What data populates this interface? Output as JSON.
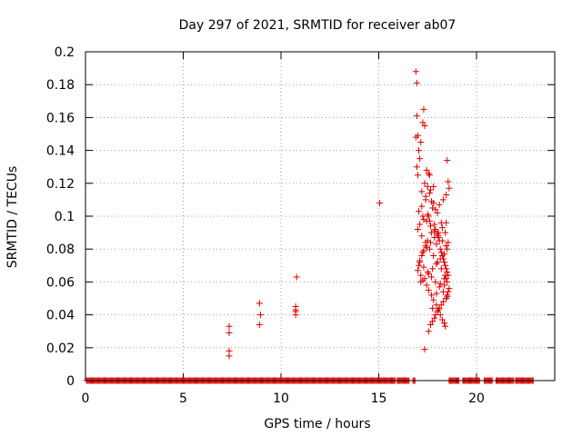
{
  "chart_data": {
    "type": "scatter",
    "title": "Day 297 of 2021, SRMTID for receiver ab07",
    "xlabel": "GPS time / hours",
    "ylabel": "SRMTID / TECUs",
    "xlim": [
      0,
      24
    ],
    "ylim": [
      0,
      0.2
    ],
    "xticks": [
      0,
      5,
      10,
      15,
      20
    ],
    "xtick_labels": [
      "0",
      "5",
      "10",
      "15",
      "20"
    ],
    "yticks": [
      0,
      0.02,
      0.04,
      0.06,
      0.08,
      0.1,
      0.12,
      0.14,
      0.16,
      0.18,
      0.2
    ],
    "ytick_labels": [
      "0",
      "0.02",
      "0.04",
      "0.06",
      "0.08",
      "0.1",
      "0.12",
      "0.14",
      "0.16",
      "0.18",
      "0.2"
    ],
    "grid": true,
    "marker": "+",
    "marker_color": "#dd0000",
    "zero_runs": [
      [
        0.05,
        15.85
      ],
      [
        15.95,
        16.55
      ],
      [
        16.75,
        16.85
      ],
      [
        18.6,
        19.1
      ],
      [
        19.3,
        20.15
      ],
      [
        20.4,
        20.8
      ],
      [
        21.0,
        21.9
      ],
      [
        22.0,
        22.9
      ]
    ],
    "zero_step": 0.05,
    "series": [
      {
        "name": "SRMTID",
        "x": [
          7.35,
          7.35,
          7.35,
          7.35,
          8.9,
          8.95,
          8.9,
          10.75,
          10.75,
          10.75,
          10.75,
          10.8,
          15.05,
          16.9,
          16.95,
          16.95,
          17.0,
          16.9,
          17.05,
          16.95,
          17.1,
          17.0,
          17.2,
          17.3,
          17.35,
          17.15,
          17.25,
          17.45,
          17.55,
          17.6,
          17.35,
          17.5,
          17.65,
          17.4,
          17.7,
          17.75,
          17.8,
          17.55,
          17.6,
          17.85,
          17.9,
          17.7,
          18.0,
          18.05,
          18.1,
          17.95,
          18.15,
          18.2,
          18.25,
          18.3,
          18.35,
          18.4,
          18.45,
          18.5,
          18.55,
          18.45,
          18.5,
          18.35,
          18.6,
          18.55,
          18.5,
          18.45,
          18.3,
          18.2,
          18.1,
          18.0,
          17.9,
          17.85,
          17.75,
          17.65,
          17.5,
          17.4,
          17.3,
          17.2,
          17.1,
          17.05,
          17.0,
          17.15,
          17.25,
          17.45,
          17.55,
          17.7,
          17.8,
          17.95,
          18.05,
          18.15,
          18.25,
          18.35,
          18.4,
          18.5,
          18.55,
          18.6,
          17.1,
          17.3,
          17.5,
          17.9,
          18.1,
          18.3,
          18.45,
          17.0,
          17.2,
          17.4,
          17.6,
          17.8,
          18.0,
          18.2,
          18.4,
          17.15,
          17.35,
          17.55,
          17.75,
          17.95,
          18.15,
          18.35,
          18.5,
          17.05,
          17.25,
          17.45,
          17.65,
          17.85,
          18.05,
          18.25,
          18.45,
          17.1,
          17.3,
          17.5,
          17.7,
          17.9,
          18.1,
          18.3,
          18.5,
          17.2,
          17.4,
          17.6,
          17.8,
          18.0,
          18.2,
          18.4,
          18.55,
          17.25,
          17.45,
          17.65,
          17.85,
          18.05,
          18.25,
          18.45,
          17.35,
          17.55,
          17.75,
          17.95,
          18.15,
          18.35
        ],
        "y": [
          0.033,
          0.029,
          0.018,
          0.015,
          0.047,
          0.04,
          0.034,
          0.045,
          0.043,
          0.042,
          0.04,
          0.063,
          0.108,
          0.188,
          0.181,
          0.161,
          0.149,
          0.148,
          0.14,
          0.13,
          0.135,
          0.125,
          0.115,
          0.165,
          0.155,
          0.145,
          0.157,
          0.128,
          0.126,
          0.125,
          0.12,
          0.118,
          0.116,
          0.112,
          0.109,
          0.105,
          0.118,
          0.1,
          0.097,
          0.095,
          0.092,
          0.09,
          0.089,
          0.087,
          0.085,
          0.083,
          0.08,
          0.078,
          0.076,
          0.074,
          0.072,
          0.07,
          0.068,
          0.066,
          0.064,
          0.062,
          0.06,
          0.058,
          0.056,
          0.054,
          0.052,
          0.05,
          0.048,
          0.046,
          0.044,
          0.042,
          0.04,
          0.038,
          0.036,
          0.034,
          0.085,
          0.082,
          0.079,
          0.076,
          0.073,
          0.07,
          0.067,
          0.064,
          0.061,
          0.058,
          0.055,
          0.052,
          0.049,
          0.046,
          0.043,
          0.04,
          0.037,
          0.035,
          0.033,
          0.134,
          0.121,
          0.117,
          0.095,
          0.098,
          0.101,
          0.104,
          0.107,
          0.11,
          0.113,
          0.092,
          0.088,
          0.084,
          0.08,
          0.076,
          0.072,
          0.068,
          0.064,
          0.06,
          0.062,
          0.065,
          0.068,
          0.071,
          0.074,
          0.077,
          0.08,
          0.103,
          0.1,
          0.097,
          0.094,
          0.091,
          0.088,
          0.085,
          0.082,
          0.072,
          0.069,
          0.066,
          0.063,
          0.06,
          0.057,
          0.054,
          0.051,
          0.106,
          0.11,
          0.114,
          0.108,
          0.102,
          0.096,
          0.09,
          0.084,
          0.078,
          0.081,
          0.084,
          0.087,
          0.09,
          0.093,
          0.096,
          0.019,
          0.03,
          0.044,
          0.053,
          0.059,
          0.062
        ]
      }
    ]
  }
}
